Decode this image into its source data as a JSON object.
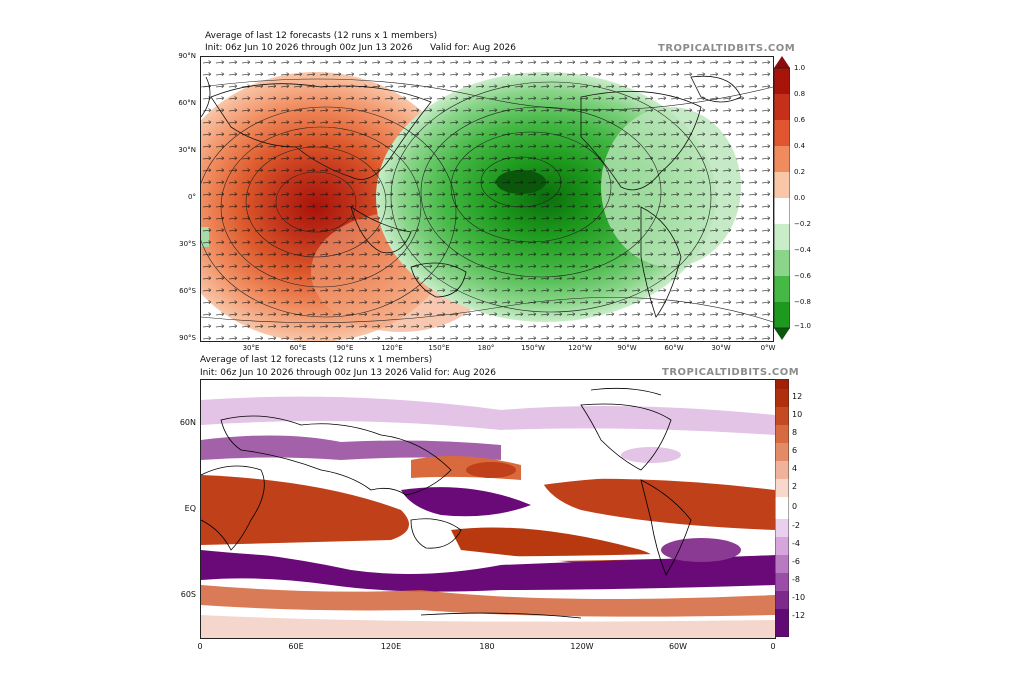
{
  "top_panel": {
    "title_line1": "Average of last 12 forecasts (12 runs x 1 members)",
    "title_line2_init": "Init: 06z Jun 10 2026 through 00z Jun 13 2026",
    "title_line2_valid": "Valid for: Aug 2026",
    "brand": "TROPICALTIDBITS.COM",
    "lat_labels": [
      "90°N",
      "60°N",
      "30°N",
      "0°",
      "30°S",
      "60°S",
      "90°S"
    ],
    "lon_labels": [
      "30°E",
      "60°E",
      "90°E",
      "120°E",
      "150°E",
      "180°",
      "150°W",
      "120°W",
      "90°W",
      "60°W",
      "30°W",
      "0°W"
    ],
    "colorbar_labels": [
      "1.0",
      "0.8",
      "0.6",
      "0.4",
      "0.2",
      "0.0",
      "−0.2",
      "−0.4",
      "−0.6",
      "−0.8",
      "−1.0"
    ],
    "colors": {
      "positive": "#b0200c",
      "negative": "#0c7a0c"
    }
  },
  "bottom_panel": {
    "title_line1": "Average of last 12 forecasts (12 runs x 1 members)",
    "title_line2_init": "Init: 06z Jun 10 2026 through 00z Jun 13 2026",
    "title_line2_valid": "Valid for: Aug 2026",
    "brand": "TROPICALTIDBITS.COM",
    "lat_labels": [
      "60N",
      "EQ",
      "60S"
    ],
    "lon_labels": [
      "0",
      "60E",
      "120E",
      "180",
      "120W",
      "60W",
      "0"
    ],
    "colorbar_labels": [
      "12",
      "10",
      "8",
      "6",
      "4",
      "2",
      "0",
      "-2",
      "-4",
      "-6",
      "-8",
      "-10",
      "-12"
    ],
    "colors": {
      "positive": "#b0300e",
      "negative": "#6a0a78"
    }
  }
}
